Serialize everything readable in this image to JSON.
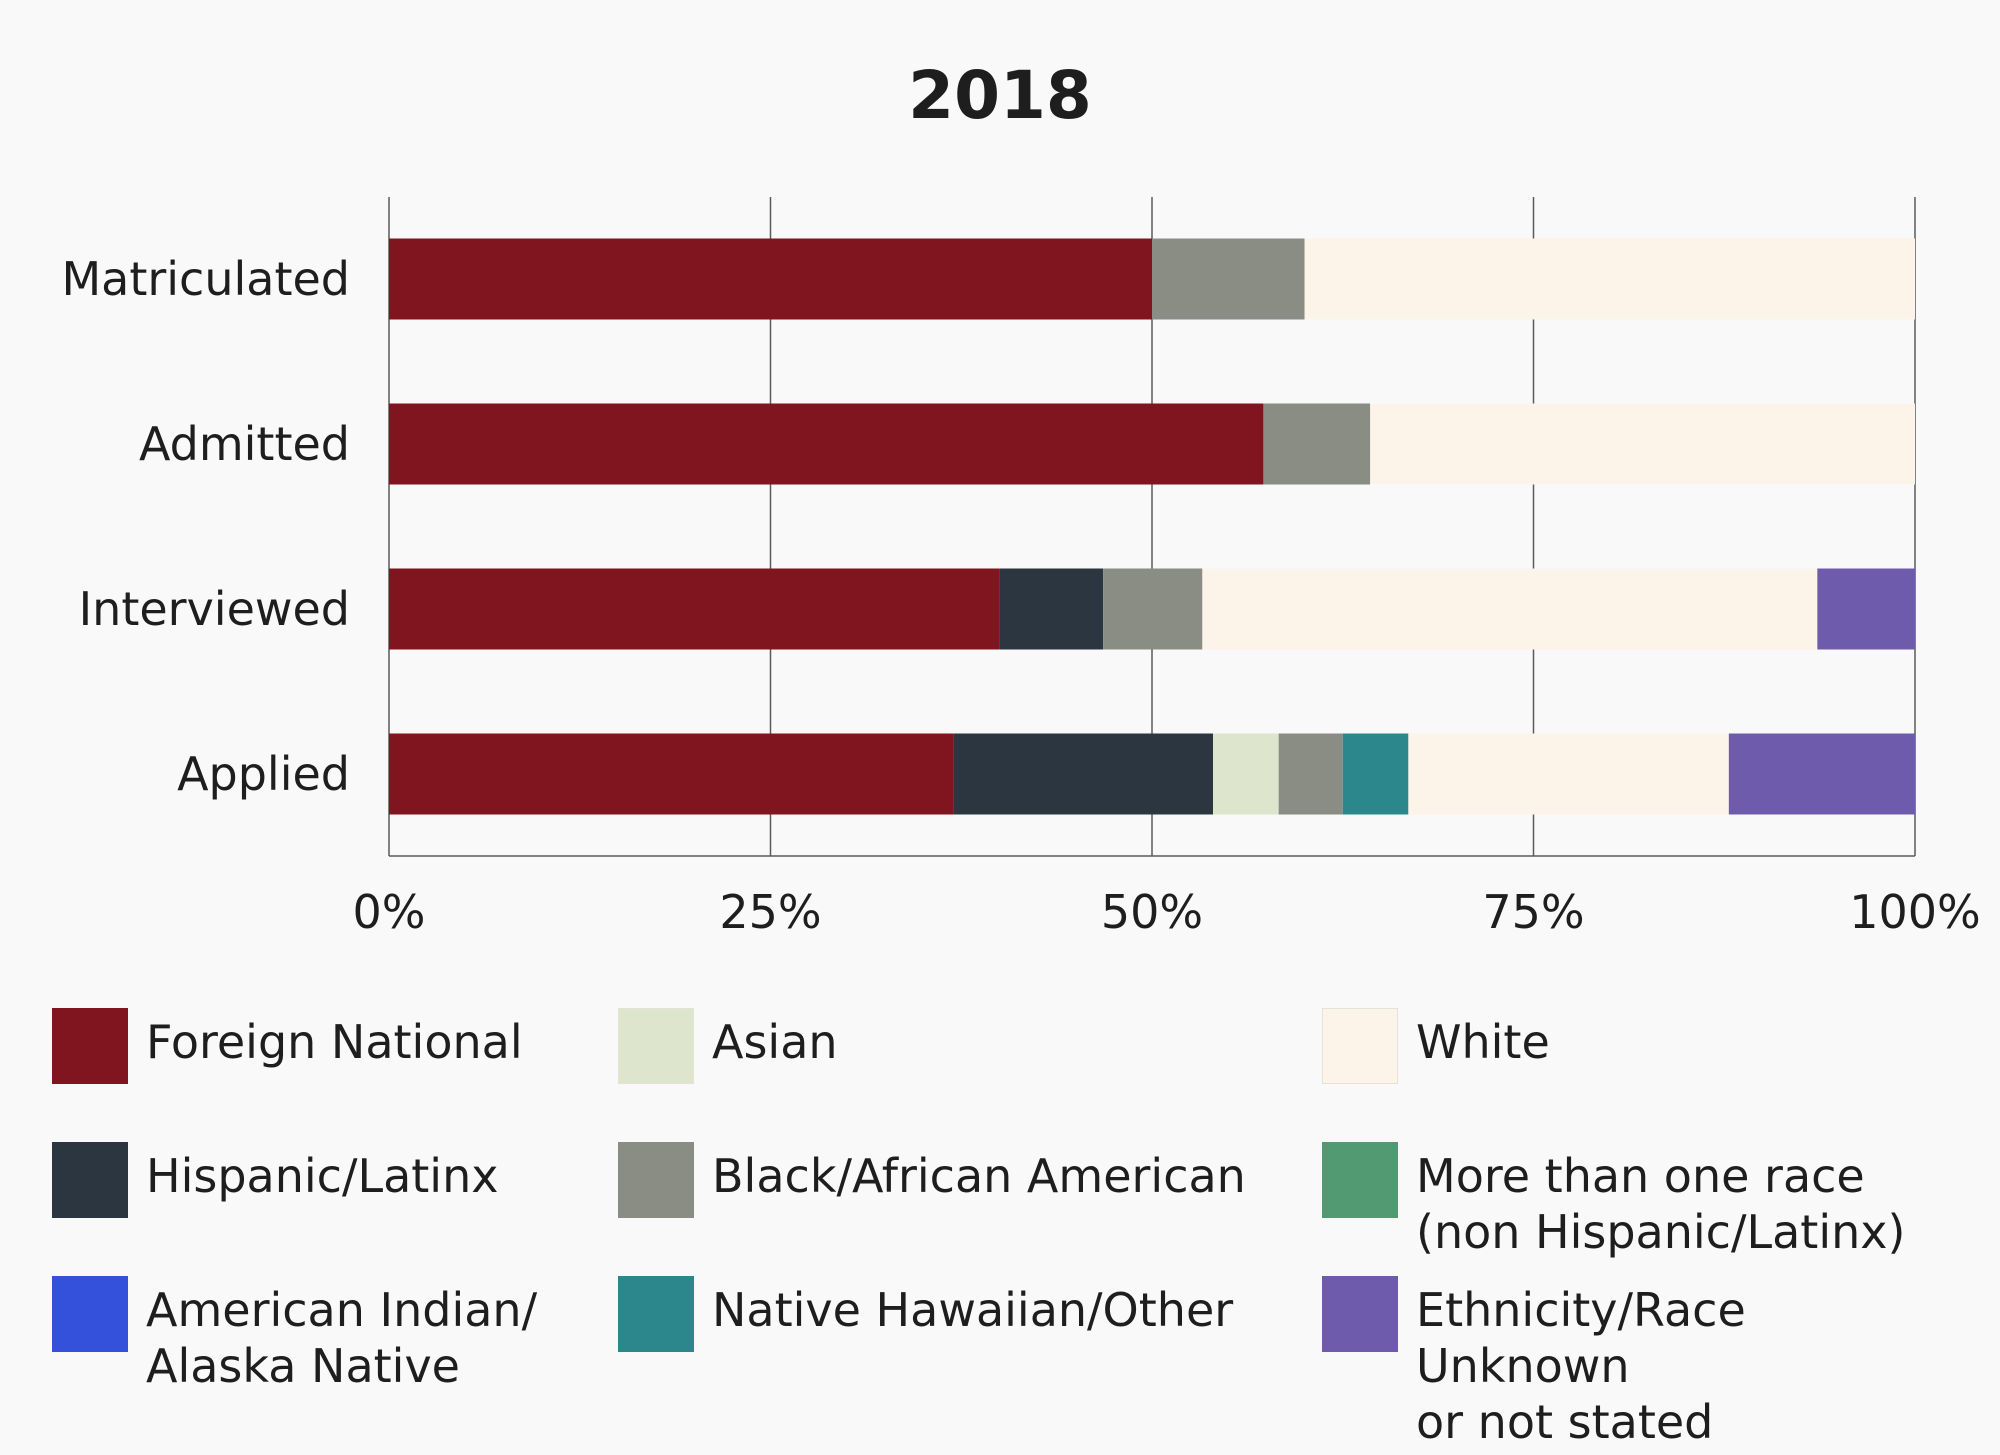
{
  "chart_data": {
    "type": "bar",
    "orientation": "horizontal",
    "stacked": true,
    "title": "2018",
    "xlabel": "",
    "ylabel": "",
    "xlim": [
      0,
      100
    ],
    "xticks": [
      "0%",
      "25%",
      "50%",
      "75%",
      "100%"
    ],
    "categories": [
      "Matriculated",
      "Admitted",
      "Interviewed",
      "Applied"
    ],
    "series": [
      {
        "name": "Foreign National",
        "color": "#80141f",
        "values": [
          50,
          57.3,
          40,
          37
        ]
      },
      {
        "name": "Hispanic/Latinx",
        "color": "#2b3640",
        "values": [
          0,
          0,
          6.8,
          17
        ]
      },
      {
        "name": "Asian",
        "color": "#dde5cd",
        "values": [
          0,
          0,
          0,
          4.3
        ]
      },
      {
        "name": "Black/African American",
        "color": "#8a8d84",
        "values": [
          10,
          7,
          6.5,
          4.2
        ]
      },
      {
        "name": "Native Hawaiian/Other",
        "color": "#2b878b",
        "values": [
          0,
          0,
          0,
          4.3
        ]
      },
      {
        "name": "White",
        "color": "#fdf4e9",
        "values": [
          40,
          35.7,
          40.3,
          21
        ]
      },
      {
        "name": "More than one race\n(non Hispanic/Latinx)",
        "color": "#519a72",
        "values": [
          0,
          0,
          0,
          0
        ]
      },
      {
        "name": "American Indian/\nAlaska Native",
        "color": "#3351db",
        "values": [
          0,
          0,
          0,
          0
        ]
      },
      {
        "name": "Ethnicity/Race Unknown\nor not stated",
        "color": "#6f5bab",
        "values": [
          0,
          0,
          6.4,
          12.2
        ]
      }
    ]
  },
  "legend": {
    "items": [
      {
        "label": "Foreign National",
        "color": "#80141f"
      },
      {
        "label": "Asian",
        "color": "#dde5cd"
      },
      {
        "label": "White",
        "color": "#fdf4e9"
      },
      {
        "label": "Hispanic/Latinx",
        "color": "#2b3640"
      },
      {
        "label": "Black/African American",
        "color": "#8a8d84"
      },
      {
        "label": "More than one race\n(non Hispanic/Latinx)",
        "color": "#519a72"
      },
      {
        "label": "American Indian/\nAlaska Native",
        "color": "#3351db"
      },
      {
        "label": "Native Hawaiian/Other",
        "color": "#2b878b"
      },
      {
        "label": "Ethnicity/Race Unknown\nor not stated",
        "color": "#6f5bab"
      }
    ]
  }
}
